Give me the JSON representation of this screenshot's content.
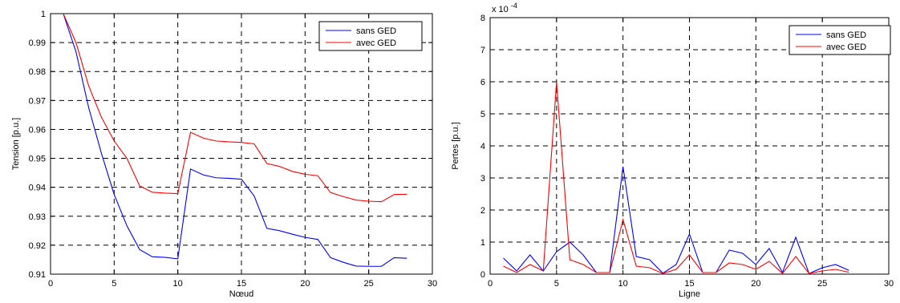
{
  "chart_data": [
    {
      "type": "line",
      "title": "",
      "xlabel": "Nœud",
      "ylabel": "Tension [p.u.]",
      "xlim": [
        0,
        30
      ],
      "ylim": [
        0.91,
        1
      ],
      "xticks": [
        "0",
        "5",
        "10",
        "15",
        "20",
        "25",
        "30"
      ],
      "yticks": [
        "0.91",
        "0.92",
        "0.93",
        "0.94",
        "0.95",
        "0.96",
        "0.97",
        "0.98",
        "0.99",
        "1"
      ],
      "grid": true,
      "legend_position": "top-right",
      "x": [
        1,
        2,
        3,
        4,
        5,
        6,
        7,
        8,
        9,
        10,
        11,
        12,
        13,
        14,
        15,
        16,
        17,
        18,
        19,
        20,
        21,
        22,
        23,
        24,
        25,
        26,
        27,
        28
      ],
      "series": [
        {
          "name": "sans GED",
          "color": "#0000ff",
          "values": [
            1.0,
            0.9868,
            0.9675,
            0.9517,
            0.9375,
            0.9267,
            0.9185,
            0.916,
            0.9158,
            0.9153,
            0.9463,
            0.9443,
            0.9433,
            0.9431,
            0.9428,
            0.937,
            0.9258,
            0.925,
            0.9238,
            0.9227,
            0.922,
            0.9157,
            0.9141,
            0.9128,
            0.9127,
            0.9127,
            0.9157,
            0.9155
          ]
        },
        {
          "name": "avec GED",
          "color": "#ff0000",
          "values": [
            1.0,
            0.99,
            0.975,
            0.9642,
            0.956,
            0.95,
            0.9405,
            0.9383,
            0.938,
            0.9378,
            0.959,
            0.957,
            0.956,
            0.9557,
            0.9555,
            0.955,
            0.9482,
            0.9472,
            0.9455,
            0.9445,
            0.944,
            0.9382,
            0.9368,
            0.9356,
            0.9352,
            0.935,
            0.9375,
            0.9376
          ]
        }
      ]
    },
    {
      "type": "line",
      "title": "",
      "xlabel": "Ligne",
      "ylabel": "Pertes [p.u.]",
      "exponent_label": "x 10",
      "exponent_power": "-4",
      "xlim": [
        0,
        30
      ],
      "ylim": [
        0,
        8
      ],
      "xticks": [
        "0",
        "5",
        "10",
        "15",
        "20",
        "25",
        "30"
      ],
      "yticks": [
        "0",
        "1",
        "2",
        "3",
        "4",
        "5",
        "6",
        "7",
        "8"
      ],
      "grid": true,
      "legend_position": "top-right",
      "x": [
        1,
        2,
        3,
        4,
        5,
        6,
        7,
        8,
        9,
        10,
        11,
        12,
        13,
        14,
        15,
        16,
        17,
        18,
        19,
        20,
        21,
        22,
        23,
        24,
        25,
        26,
        27
      ],
      "series": [
        {
          "name": "sans GED",
          "color": "#0000ff",
          "values": [
            0.5,
            0.1,
            0.6,
            0.1,
            0.7,
            1.0,
            0.6,
            0.05,
            0.05,
            3.35,
            0.55,
            0.45,
            0.03,
            0.3,
            1.25,
            0.05,
            0.05,
            0.75,
            0.65,
            0.3,
            0.8,
            0.05,
            1.15,
            0.02,
            0.2,
            0.3,
            0.12
          ]
        },
        {
          "name": "avec GED",
          "color": "#ff0000",
          "values": [
            0.25,
            0.05,
            0.3,
            0.1,
            6.0,
            0.45,
            0.3,
            0.05,
            0.05,
            1.7,
            0.25,
            0.2,
            0.02,
            0.15,
            0.6,
            0.05,
            0.05,
            0.35,
            0.3,
            0.15,
            0.4,
            0.02,
            0.55,
            0.02,
            0.1,
            0.15,
            0.06
          ]
        }
      ]
    }
  ]
}
